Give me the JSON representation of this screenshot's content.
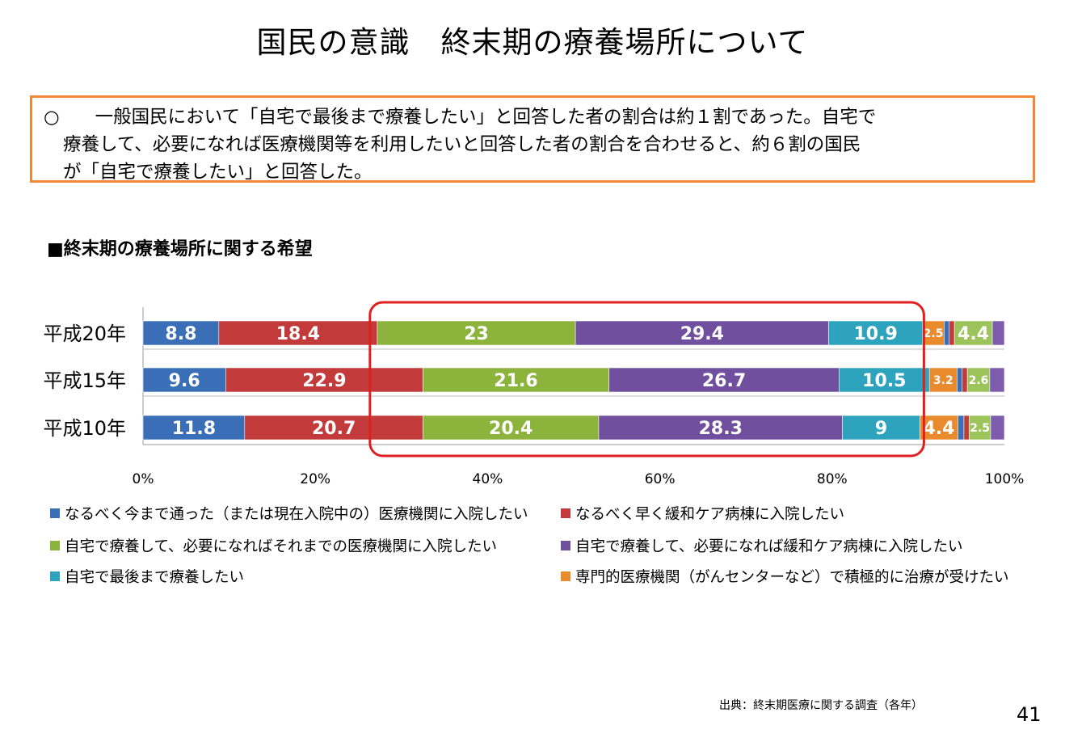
{
  "title": "国民の意識　終末期の療養場所について",
  "summary": {
    "bullet": "○",
    "line1": "一般国民において「自宅で最後まで療養したい」と回答した者の割合は約１割であった。自宅で",
    "line2": "療養して、必要になれば医療機関等を利用したいと回答した者の割合を合わせると、約６割の国民",
    "line3": "が「自宅で療養したい」と回答した。"
  },
  "chart_title": "■終末期の療養場所に関する希望",
  "source": "出典：終末期医療に関する調査（各年）",
  "page_number": "41",
  "chart_data": {
    "type": "bar",
    "orientation": "horizontal",
    "stacked": true,
    "percent_stacked": true,
    "categories": [
      "平成20年",
      "平成15年",
      "平成10年"
    ],
    "series": [
      {
        "name": "なるべく今まで通った（または現在入院中の）医療機関に入院したい",
        "color": "#3a6fb7",
        "values": [
          8.8,
          9.6,
          11.8
        ]
      },
      {
        "name": "なるべく早く緩和ケア病棟に入院したい",
        "color": "#c23a3a",
        "values": [
          18.4,
          22.9,
          20.7
        ]
      },
      {
        "name": "自宅で療養して、必要になればそれまでの医療機関に入院したい",
        "color": "#8cb43c",
        "values": [
          23,
          21.6,
          20.4
        ]
      },
      {
        "name": "自宅で療養して、必要になれば緩和ケア病棟に入院したい",
        "color": "#6f4f9e",
        "values": [
          29.4,
          26.7,
          28.3
        ]
      },
      {
        "name": "自宅で最後まで療養したい",
        "color": "#2ea3be",
        "values": [
          10.9,
          10.5,
          9
        ]
      },
      {
        "name": "専門的医療機関（がんセンターなど）で積極的に治療が受けたい",
        "color": "#e98a2c",
        "values": [
          2.5,
          3.2,
          4.4
        ]
      },
      {
        "name": "",
        "color": "#3a6fb7",
        "values": [
          0.6,
          0.6,
          0.7
        ]
      },
      {
        "name": "",
        "color": "#c23a3a",
        "values": [
          0.6,
          0.6,
          0.6
        ]
      },
      {
        "name": "",
        "color": "#9cc45a",
        "values": [
          4.4,
          2.6,
          2.5
        ]
      },
      {
        "name": "",
        "color": "#7d5cae",
        "values": [
          1.4,
          1.7,
          1.6
        ]
      }
    ],
    "data_labels": [
      [
        "8.8",
        "18.4",
        "23",
        "29.4",
        "10.9",
        "2.5",
        "",
        "",
        "4.4",
        ""
      ],
      [
        "9.6",
        "22.9",
        "21.6",
        "26.7",
        "10.5",
        "3.2",
        "",
        "",
        "2.6",
        ""
      ],
      [
        "11.8",
        "20.7",
        "20.4",
        "28.3",
        "9",
        "4.4",
        "",
        "",
        "2.5",
        ""
      ]
    ],
    "xaxis": {
      "ticks": [
        "0%",
        "20%",
        "40%",
        "60%",
        "80%",
        "100%"
      ],
      "range": [
        0,
        100
      ]
    },
    "highlight": {
      "from": 27,
      "to": 90,
      "color": "#e02020"
    },
    "legend": [
      {
        "label": "なるべく今まで通った（または現在入院中の）医療機関に入院したい",
        "color": "#3a6fb7"
      },
      {
        "label": "なるべく早く緩和ケア病棟に入院したい",
        "color": "#c23a3a"
      },
      {
        "label": "自宅で療養して、必要になればそれまでの医療機関に入院したい",
        "color": "#8cb43c"
      },
      {
        "label": "自宅で療養して、必要になれば緩和ケア病棟に入院したい",
        "color": "#6f4f9e"
      },
      {
        "label": "自宅で最後まで療養したい",
        "color": "#2ea3be"
      },
      {
        "label": "専門的医療機関（がんセンターなど）で積極的に治療が受けたい",
        "color": "#e98a2c"
      }
    ]
  }
}
